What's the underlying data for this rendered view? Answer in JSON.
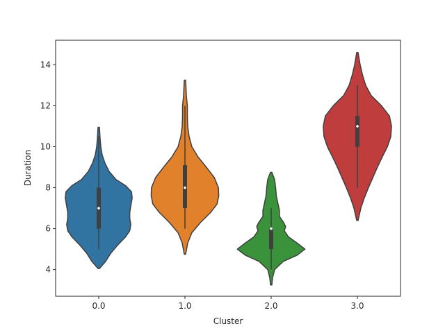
{
  "chart_data": {
    "type": "violin",
    "xlabel": "Cluster",
    "ylabel": "Duration",
    "ylim": [
      2.7,
      15.2
    ],
    "y_ticks": [
      4,
      6,
      8,
      10,
      12,
      14
    ],
    "y_tick_labels": [
      "4",
      "6",
      "8",
      "10",
      "12",
      "14"
    ],
    "categories": [
      "0.0",
      "1.0",
      "2.0",
      "3.0"
    ],
    "grid": false,
    "legend": "none",
    "violins": [
      {
        "category": "0.0",
        "color": "#3274a1",
        "min": 5,
        "q1": 6,
        "median": 7,
        "q3": 8,
        "max": 10.5,
        "kde_extent": [
          4.05,
          10.95
        ],
        "density_profile": [
          [
            4.05,
            0.02
          ],
          [
            4.4,
            0.2
          ],
          [
            4.8,
            0.35
          ],
          [
            5.2,
            0.55
          ],
          [
            5.6,
            0.78
          ],
          [
            5.9,
            0.9
          ],
          [
            6.2,
            0.93
          ],
          [
            6.5,
            0.9
          ],
          [
            6.8,
            0.9
          ],
          [
            7.1,
            0.93
          ],
          [
            7.5,
            0.97
          ],
          [
            7.8,
            0.95
          ],
          [
            8.1,
            0.78
          ],
          [
            8.4,
            0.5
          ],
          [
            8.8,
            0.3
          ],
          [
            9.2,
            0.18
          ],
          [
            9.6,
            0.1
          ],
          [
            10.0,
            0.06
          ],
          [
            10.4,
            0.04
          ],
          [
            10.95,
            0.02
          ]
        ]
      },
      {
        "category": "1.0",
        "color": "#e1812c",
        "min": 6,
        "q1": 7,
        "median": 8,
        "q3": 9.1,
        "max": 12,
        "kde_extent": [
          4.75,
          13.25
        ],
        "density_profile": [
          [
            4.75,
            0.02
          ],
          [
            5.3,
            0.08
          ],
          [
            5.8,
            0.2
          ],
          [
            6.3,
            0.45
          ],
          [
            6.8,
            0.75
          ],
          [
            7.2,
            0.93
          ],
          [
            7.6,
            0.98
          ],
          [
            8.0,
            0.97
          ],
          [
            8.5,
            0.85
          ],
          [
            9.0,
            0.62
          ],
          [
            9.5,
            0.38
          ],
          [
            10.0,
            0.2
          ],
          [
            10.5,
            0.12
          ],
          [
            11.0,
            0.08
          ],
          [
            11.5,
            0.07
          ],
          [
            12.0,
            0.07
          ],
          [
            12.5,
            0.04
          ],
          [
            13.25,
            0.02
          ]
        ]
      },
      {
        "category": "2.0",
        "color": "#3a923a",
        "min": 4,
        "q1": 5,
        "median": 6,
        "q3": 6,
        "max": 7,
        "kde_extent": [
          3.25,
          8.75
        ],
        "density_profile": [
          [
            3.25,
            0.02
          ],
          [
            3.6,
            0.04
          ],
          [
            4.0,
            0.1
          ],
          [
            4.4,
            0.35
          ],
          [
            4.7,
            0.75
          ],
          [
            5.0,
            0.98
          ],
          [
            5.3,
            0.75
          ],
          [
            5.6,
            0.5
          ],
          [
            5.9,
            0.38
          ],
          [
            6.1,
            0.42
          ],
          [
            6.3,
            0.36
          ],
          [
            6.6,
            0.24
          ],
          [
            6.9,
            0.24
          ],
          [
            7.2,
            0.2
          ],
          [
            7.6,
            0.15
          ],
          [
            8.0,
            0.13
          ],
          [
            8.4,
            0.1
          ],
          [
            8.75,
            0.02
          ]
        ]
      },
      {
        "category": "3.0",
        "color": "#c03d3e",
        "min": 8,
        "q1": 10,
        "median": 11,
        "q3": 11.5,
        "max": 13,
        "kde_extent": [
          6.4,
          14.6
        ],
        "density_profile": [
          [
            6.4,
            0.02
          ],
          [
            7.0,
            0.1
          ],
          [
            7.5,
            0.2
          ],
          [
            8.0,
            0.32
          ],
          [
            8.5,
            0.45
          ],
          [
            9.0,
            0.58
          ],
          [
            9.5,
            0.72
          ],
          [
            10.0,
            0.87
          ],
          [
            10.5,
            0.97
          ],
          [
            11.0,
            0.99
          ],
          [
            11.5,
            0.93
          ],
          [
            12.0,
            0.7
          ],
          [
            12.5,
            0.4
          ],
          [
            13.0,
            0.24
          ],
          [
            13.5,
            0.15
          ],
          [
            14.0,
            0.08
          ],
          [
            14.6,
            0.02
          ]
        ]
      }
    ]
  }
}
